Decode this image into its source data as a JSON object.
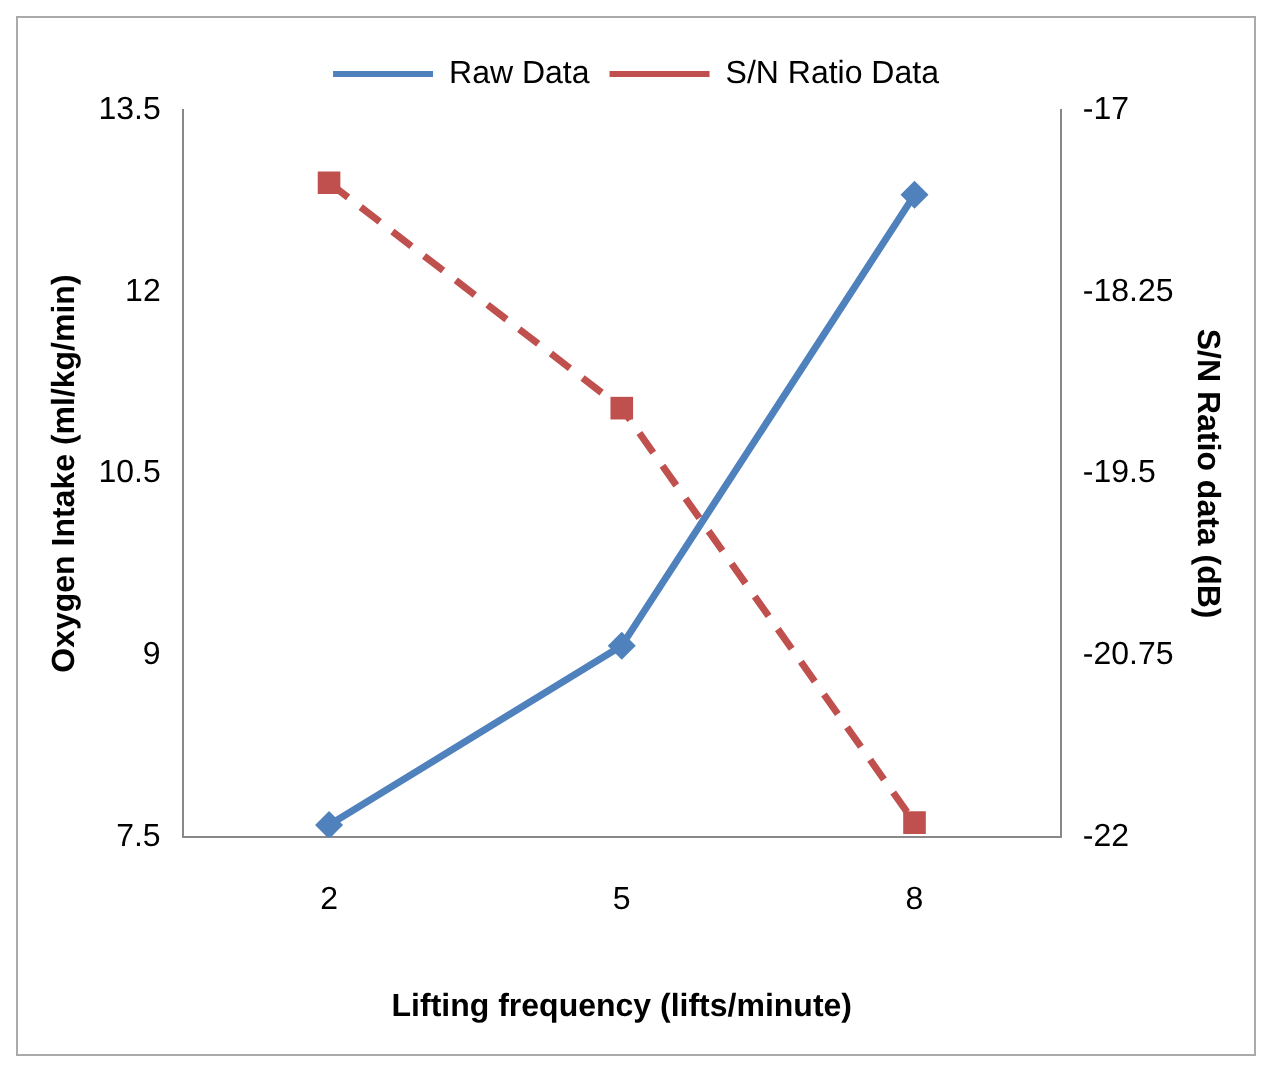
{
  "chart_data": {
    "type": "line",
    "categories": [
      "2",
      "5",
      "8"
    ],
    "xlabel": "Lifting frequency (lifts/minute)",
    "ylabel": "Oxygen Intake (ml/kg/min)",
    "y2label": "S/N Ratio data (dB)",
    "ylim": [
      7.5,
      13.5
    ],
    "yticks": [
      7.5,
      9,
      10.5,
      12,
      13.5
    ],
    "y2lim": [
      -22,
      -17
    ],
    "y2ticks": [
      -22,
      -20.75,
      -19.5,
      -18.25,
      -17
    ],
    "grid": false,
    "legend": "top",
    "series": [
      {
        "name": "Raw Data",
        "color": "#4f81bd",
        "values": [
          7.6,
          9.08,
          12.8
        ],
        "marker": "diamond",
        "line_style": "solid"
      },
      {
        "name": "S/N Ratio Data",
        "color": "#c0504d",
        "values": [
          -17.5,
          -19.05,
          -21.9
        ],
        "axis": "y2",
        "marker": "square",
        "line_style": "dashed"
      }
    ]
  }
}
